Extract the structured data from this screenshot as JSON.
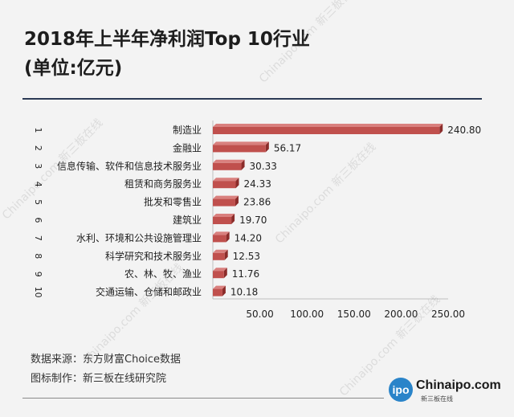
{
  "title": "2018年上半年净利润Top 10行业",
  "subtitle": "(单位:亿元)",
  "source": "数据来源：东方财富Choice数据",
  "maker": "图标制作：新三板在线研究院",
  "logo": {
    "circle_text": "ipo",
    "text": "Chinaipo.com",
    "sub": "新三板在线"
  },
  "watermark": "Chinaipo.com 新三板在线",
  "colors": {
    "bar": "#c0504d",
    "bar_dark": "#8b2c2a",
    "bar_top": "#d9807e",
    "axis": "#bfbfbf",
    "text": "#222222"
  },
  "chart_data": {
    "type": "bar",
    "orientation": "horizontal-3d",
    "ranks": [
      "1",
      "2",
      "3",
      "4",
      "5",
      "6",
      "7",
      "8",
      "9",
      "10"
    ],
    "categories": [
      "制造业",
      "金融业",
      "信息传输、软件和信息技术服务业",
      "租赁和商务服务业",
      "批发和零售业",
      "建筑业",
      "水利、环境和公共设施管理业",
      "科学研究和技术服务业",
      "农、林、牧、渔业",
      "交通运输、仓储和邮政业"
    ],
    "values": [
      240.8,
      56.17,
      30.33,
      24.33,
      23.86,
      19.7,
      14.2,
      12.53,
      11.76,
      10.18
    ],
    "value_labels": [
      "240.80",
      "56.17",
      "30.33",
      "24.33",
      "23.86",
      "19.70",
      "14.20",
      "12.53",
      "11.76",
      "10.18"
    ],
    "xticks": [
      "50.00",
      "100.00",
      "150.00",
      "200.00",
      "250.00"
    ],
    "xtick_values": [
      50,
      100,
      150,
      200,
      250
    ],
    "xlim": [
      0,
      250
    ],
    "grid": false,
    "legend": "none"
  }
}
